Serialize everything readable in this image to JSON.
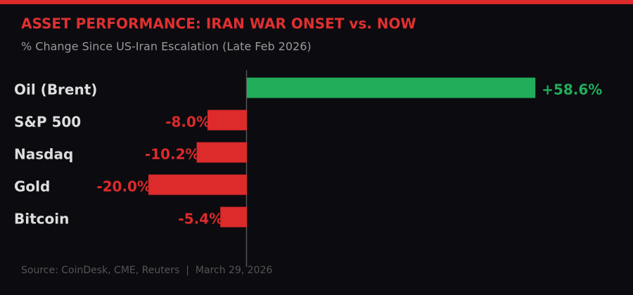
{
  "chart_data": {
    "type": "hbar",
    "title": "ASSET PERFORMANCE: IRAN WAR ONSET vs. NOW",
    "subtitle": "% Change Since US-Iran Escalation (Late Feb 2026)",
    "categories": [
      "Oil (Brent)",
      "S&P 500",
      "Nasdaq",
      "Gold",
      "Bitcoin"
    ],
    "values": [
      58.6,
      -8.0,
      -10.2,
      -20.0,
      -5.4
    ],
    "value_labels": [
      "+58.6%",
      "-8.0%",
      "-10.2%",
      "-20.0%",
      "-5.4%"
    ],
    "colors": [
      "#22ad5a",
      "#dd2a2a",
      "#dd2a2a",
      "#dd2a2a",
      "#dd2a2a"
    ],
    "source": "Source: CoinDesk, CME, Reuters  |  March 29, 2026"
  }
}
